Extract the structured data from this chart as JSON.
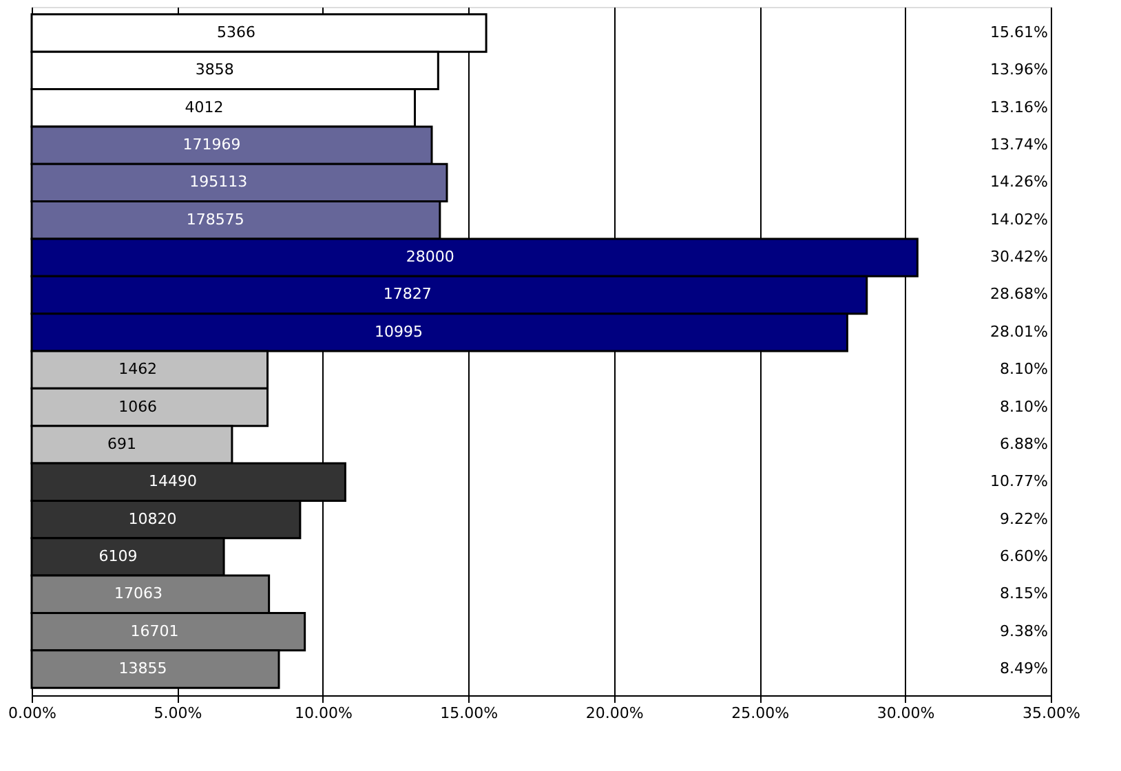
{
  "chart_data": {
    "type": "bar",
    "orientation": "horizontal",
    "categories": [
      null,
      null,
      null,
      null,
      null,
      null,
      null,
      null,
      null,
      null,
      null,
      null,
      null,
      null,
      null,
      null,
      null,
      null
    ],
    "values": [
      15.61,
      13.96,
      13.16,
      13.74,
      14.26,
      14.02,
      30.42,
      28.68,
      28.01,
      8.1,
      8.1,
      6.88,
      10.77,
      9.22,
      6.6,
      8.15,
      9.38,
      8.49
    ],
    "colors": [
      "#ffffff",
      "#ffffff",
      "#ffffff",
      "#666699",
      "#666699",
      "#666699",
      "#000080",
      "#000080",
      "#000080",
      "#c0c0c0",
      "#c0c0c0",
      "#c0c0c0",
      "#333333",
      "#333333",
      "#333333",
      "#808080",
      "#808080",
      "#808080"
    ],
    "annotations": [
      "5366",
      "3858",
      "4012",
      "171969",
      "195113",
      "178575",
      "28000",
      "17827",
      "10995",
      "1462",
      "1066",
      "691",
      "14490",
      "10820",
      "6109",
      "17063",
      "16701",
      "13855"
    ],
    "value_labels": [
      "15.61%",
      "13.96%",
      "13.16%",
      "13.74%",
      "14.26%",
      "14.02%",
      "30.42%",
      "28.68%",
      "28.01%",
      "8.10%",
      "8.10%",
      "6.88%",
      "10.77%",
      "9.22%",
      "6.60%",
      "8.15%",
      "9.38%",
      "8.49%"
    ],
    "xlim": [
      0,
      35
    ],
    "xticks": [
      {
        "value": 0,
        "label": "0.00%"
      },
      {
        "value": 5,
        "label": "5.00%"
      },
      {
        "value": 10,
        "label": "10.00%"
      },
      {
        "value": 15,
        "label": "15.00%"
      },
      {
        "value": 20,
        "label": "20.00%"
      },
      {
        "value": 25,
        "label": "25.00%"
      },
      {
        "value": 30,
        "label": "30.00%"
      },
      {
        "value": 35,
        "label": "35.00%"
      }
    ],
    "grid": "x",
    "tick_labels": "x"
  }
}
